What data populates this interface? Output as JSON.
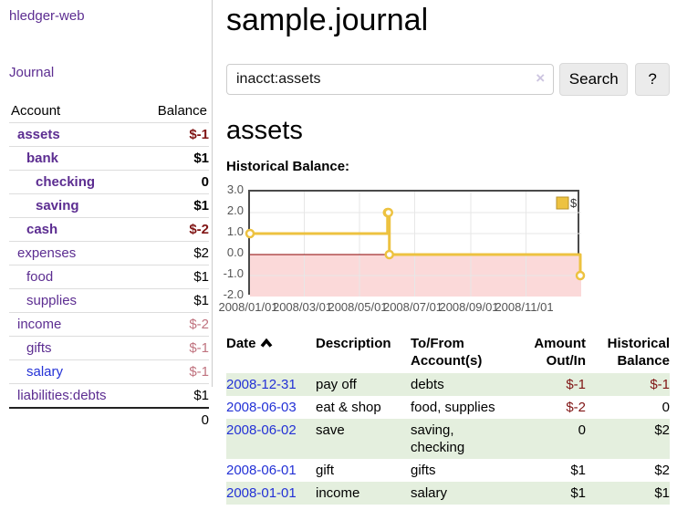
{
  "sidebar": {
    "brand": "hledger-web",
    "journal_link": "Journal",
    "accounts_table": {
      "header_account": "Account",
      "header_balance": "Balance",
      "rows": [
        {
          "name": "assets",
          "balance": "$-1",
          "indent": 1,
          "bold": true,
          "balance_style": "neg-strong",
          "link_style": "purple"
        },
        {
          "name": "bank",
          "balance": "$1",
          "indent": 2,
          "bold": true,
          "balance_style": "",
          "link_style": "purple"
        },
        {
          "name": "checking",
          "balance": "0",
          "indent": 3,
          "bold": true,
          "balance_style": "",
          "link_style": "purple"
        },
        {
          "name": "saving",
          "balance": "$1",
          "indent": 3,
          "bold": true,
          "balance_style": "",
          "link_style": "purple"
        },
        {
          "name": "cash",
          "balance": "$-2",
          "indent": 2,
          "bold": true,
          "balance_style": "neg-strong",
          "link_style": "purple"
        },
        {
          "name": "expenses",
          "balance": "$2",
          "indent": 1,
          "bold": false,
          "balance_style": "",
          "link_style": "purple"
        },
        {
          "name": "food",
          "balance": "$1",
          "indent": 2,
          "bold": false,
          "balance_style": "",
          "link_style": "purple"
        },
        {
          "name": "supplies",
          "balance": "$1",
          "indent": 2,
          "bold": false,
          "balance_style": "",
          "link_style": "purple"
        },
        {
          "name": "income",
          "balance": "$-2",
          "indent": 1,
          "bold": false,
          "balance_style": "neg-soft",
          "link_style": "purple"
        },
        {
          "name": "gifts",
          "balance": "$-1",
          "indent": 2,
          "bold": false,
          "balance_style": "neg-soft",
          "link_style": "purple"
        },
        {
          "name": "salary",
          "balance": "$-1",
          "indent": 2,
          "bold": false,
          "balance_style": "neg-soft",
          "link_style": "blue"
        },
        {
          "name": "liabilities:debts",
          "balance": "$1",
          "indent": 1,
          "bold": false,
          "balance_style": "",
          "link_style": "purple"
        }
      ],
      "total": "0"
    }
  },
  "main": {
    "title": "sample.journal",
    "search": {
      "value": "inacct:assets",
      "clear_icon": "×",
      "button_label": "Search",
      "help_label": "?"
    },
    "account_heading": "assets",
    "chart_heading": "Historical Balance:"
  },
  "chart_data": {
    "type": "line",
    "step": true,
    "title": "Historical Balance",
    "series": [
      {
        "name": "$",
        "points": [
          {
            "date": "2008-01-01",
            "day": 0,
            "value": 1
          },
          {
            "date": "2008-06-01",
            "day": 152,
            "value": 2
          },
          {
            "date": "2008-06-02",
            "day": 153,
            "value": 2
          },
          {
            "date": "2008-06-03",
            "day": 154,
            "value": 0
          },
          {
            "date": "2008-12-31",
            "day": 365,
            "value": -1
          }
        ]
      }
    ],
    "x_ticks": [
      {
        "day": 0,
        "label": "2008/01/01"
      },
      {
        "day": 60,
        "label": "2008/03/01"
      },
      {
        "day": 121,
        "label": "2008/05/01"
      },
      {
        "day": 182,
        "label": "2008/07/01"
      },
      {
        "day": 244,
        "label": "2008/09/01"
      },
      {
        "day": 305,
        "label": "2008/11/01"
      }
    ],
    "x_max_day": 366,
    "y_ticks": [
      -2,
      -1,
      0,
      1,
      2,
      3
    ],
    "ylim": [
      -2,
      3
    ],
    "grid": true,
    "legend_position": "top-right",
    "colors": {
      "line": "#edc240",
      "marker_fill": "#ffffff",
      "legend_border": "#b8922a",
      "negative_region": "#fbd9d9",
      "zero_line": "#8b0000",
      "grid": "#e7e7e7",
      "border": "#4a4a4a",
      "axis_text": "#545454"
    }
  },
  "transactions": {
    "headers": {
      "date": "Date",
      "description": "Description",
      "accounts": "To/From Account(s)",
      "amount": "Amount Out/In",
      "balance": "Historical Balance"
    },
    "sort_caret": "up",
    "rows": [
      {
        "date": "2008-12-31",
        "description": "pay off",
        "accounts": "debts",
        "amount": "$-1",
        "amount_style": "neg-strong",
        "balance": "$-1",
        "balance_style": "neg-strong"
      },
      {
        "date": "2008-06-03",
        "description": "eat & shop",
        "accounts": "food, supplies",
        "amount": "$-2",
        "amount_style": "neg-strong",
        "balance": "0",
        "balance_style": ""
      },
      {
        "date": "2008-06-02",
        "description": "save",
        "accounts": "saving, checking",
        "amount": "0",
        "amount_style": "",
        "balance": "$2",
        "balance_style": ""
      },
      {
        "date": "2008-06-01",
        "description": "gift",
        "accounts": "gifts",
        "amount": "$1",
        "amount_style": "",
        "balance": "$2",
        "balance_style": ""
      },
      {
        "date": "2008-01-01",
        "description": "income",
        "accounts": "salary",
        "amount": "$1",
        "amount_style": "",
        "balance": "$1",
        "balance_style": ""
      }
    ]
  }
}
